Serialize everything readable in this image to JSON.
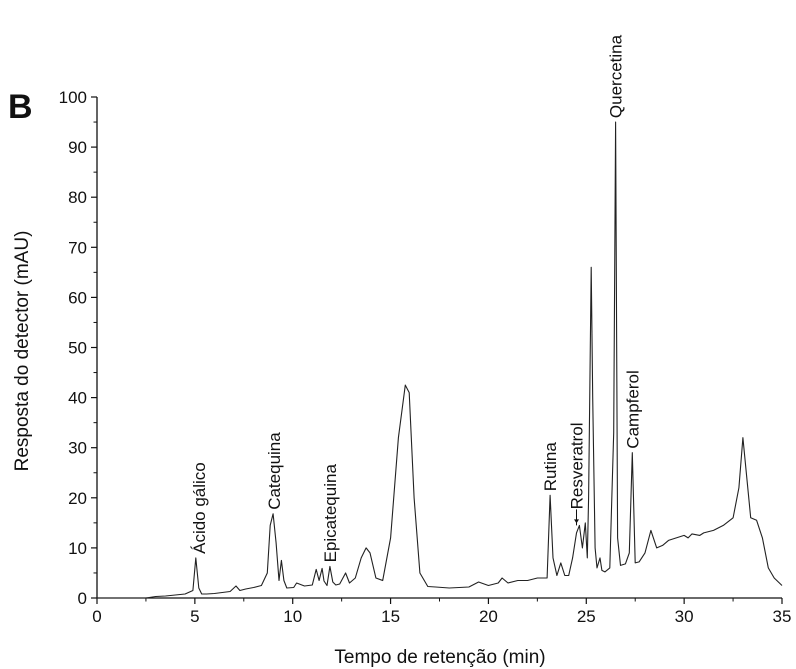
{
  "chart_data": {
    "type": "line",
    "panel_label": "B",
    "xlabel": "Tempo de retenção (min)",
    "ylabel": "Resposta do detector (mAU)",
    "xlim": [
      0,
      35
    ],
    "ylim": [
      0,
      100
    ],
    "x_ticks": [
      0,
      5,
      10,
      15,
      20,
      25,
      30,
      35
    ],
    "y_ticks": [
      0,
      10,
      20,
      30,
      40,
      50,
      60,
      70,
      80,
      90,
      100
    ],
    "grid": false,
    "color": "#222222",
    "series": [
      {
        "x": [
          0,
          2.5,
          3,
          3.5,
          4,
          4.5,
          4.9,
          5.05,
          5.2,
          5.35,
          5.6,
          6,
          6.8,
          7.1,
          7.3,
          7.6,
          8,
          8.4,
          8.7,
          8.85,
          9.0,
          9.15,
          9.3,
          9.42,
          9.55,
          9.7,
          10.05,
          10.2,
          10.6,
          11,
          11.2,
          11.35,
          11.5,
          11.6,
          11.75,
          11.9,
          12.05,
          12.2,
          12.4,
          12.7,
          12.9,
          13.2,
          13.5,
          13.75,
          13.95,
          14.25,
          14.6,
          15.0,
          15.4,
          15.75,
          15.95,
          16.2,
          16.5,
          16.9,
          17.3,
          18,
          19,
          19.5,
          20,
          20.5,
          20.7,
          21,
          21.5,
          22,
          22.5,
          23.0,
          23.15,
          23.3,
          23.5,
          23.7,
          23.9,
          24.1,
          24.3,
          24.5,
          24.65,
          24.8,
          24.95,
          25.05,
          25.12,
          25.25,
          25.33,
          25.45,
          25.55,
          25.7,
          25.8,
          25.95,
          26.2,
          26.4,
          26.5,
          26.6,
          26.75,
          27.0,
          27.2,
          27.35,
          27.5,
          27.7,
          28.0,
          28.3,
          28.6,
          28.9,
          29.2,
          29.6,
          30.0,
          30.2,
          30.4,
          30.8,
          31.0,
          31.5,
          32.0,
          32.5,
          32.8,
          33.0,
          33.2,
          33.4,
          33.7,
          34.0,
          34.3,
          34.6,
          35.0
        ],
        "y": [
          0,
          0,
          0.3,
          0.4,
          0.6,
          0.8,
          1.5,
          8,
          2,
          0.8,
          0.8,
          0.9,
          1.3,
          2.4,
          1.5,
          1.8,
          2.1,
          2.5,
          5,
          14.5,
          16.8,
          11,
          3.5,
          7.5,
          3.5,
          2,
          2.1,
          3,
          2.4,
          2.6,
          5.7,
          3.5,
          5.9,
          3.4,
          2.5,
          6.3,
          3.2,
          2.6,
          2.8,
          5,
          3,
          4,
          8,
          10,
          9,
          4,
          3.5,
          12,
          32,
          42.5,
          41,
          20,
          5,
          2.3,
          2.2,
          2,
          2.2,
          3.2,
          2.5,
          3,
          4,
          3,
          3.5,
          3.5,
          4,
          4,
          20.5,
          8,
          4.5,
          7,
          4.5,
          4.5,
          8,
          13,
          14.5,
          10,
          15,
          8,
          20,
          66,
          40,
          10,
          6,
          8,
          5.5,
          5.2,
          6,
          33,
          95,
          12,
          6.5,
          6.8,
          9,
          29,
          7,
          7.2,
          9,
          13.5,
          10,
          10.5,
          11.5,
          12,
          12.5,
          12,
          12.8,
          12.5,
          13,
          13.5,
          14.5,
          16,
          22,
          32,
          24,
          16,
          15.5,
          12,
          6,
          4,
          2.5
        ]
      }
    ],
    "annotations": [
      {
        "text": "Ácido gálico",
        "x": 5.2,
        "y": 8
      },
      {
        "text": "Catequina",
        "x": 9.05,
        "y": 16.8
      },
      {
        "text": "Epicatequina",
        "x": 11.9,
        "y": 6.3
      },
      {
        "text": "Rutina",
        "x": 23.15,
        "y": 20.5
      },
      {
        "text": "Resveratrol",
        "x": 24.5,
        "y": 14.5,
        "arrow": true
      },
      {
        "text": "Quercetina",
        "x": 26.5,
        "y": 95
      },
      {
        "text": "Campferol",
        "x": 27.35,
        "y": 29
      }
    ]
  }
}
